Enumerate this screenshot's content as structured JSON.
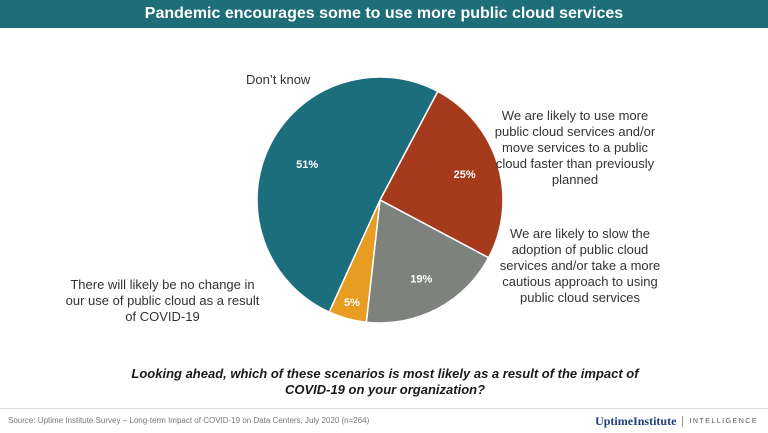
{
  "header": {
    "title": "Pandemic encourages some to use more public cloud services"
  },
  "chart_data": {
    "type": "pie",
    "slices": [
      {
        "label": "Don’t know",
        "value": 25,
        "display": "25%",
        "color": "#a63a1c"
      },
      {
        "label": "We are likely to use more public cloud services and/or move services to a public cloud faster than previously planned",
        "value": 19,
        "display": "19%",
        "color": "#7e827d"
      },
      {
        "label": "We are likely to slow the adoption of public cloud services and/or take a more cautious approach to using public cloud services",
        "value": 5,
        "display": "5%",
        "color": "#e89c22"
      },
      {
        "label": "There will likely be no change in our use of public cloud as a result of COVID-19",
        "value": 51,
        "display": "51%",
        "color": "#1d6e7d"
      }
    ]
  },
  "question": "Looking ahead, which of these scenarios is most likely as a result of the impact of COVID-19  on your organization?",
  "footer": {
    "source": "Source: Uptime Institute Survey – Long-term Impact of COVID-19 on Data Centers, July 2020 (n=264)",
    "logo_brand": "UptimeInstitute",
    "logo_sub": "INTELLIGENCE"
  }
}
